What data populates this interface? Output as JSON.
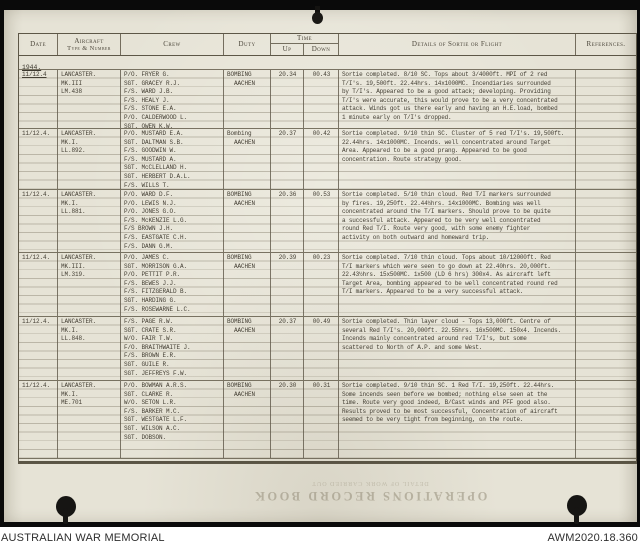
{
  "document": {
    "year_label": "1944.",
    "headers": {
      "date": "Date",
      "aircraft_line1": "Aircraft",
      "aircraft_line2": "Type & Number",
      "crew": "Crew",
      "duty": "Duty",
      "time": "Time",
      "up": "Up",
      "down": "Down",
      "details": "Details of Sortie or Flight",
      "references": "References."
    },
    "rows": [
      {
        "date": "11/12.4",
        "aircraft": [
          "LANCASTER.",
          "MK.III",
          "LM.438"
        ],
        "crew": [
          "P/O. FRYER G.",
          "SGT. GRACEY R.J.",
          "F/S. WARD J.B.",
          "F/S. HEALY J.",
          "F/S. STONE E.A.",
          "P/O. CALDERWOOD L.",
          "SGT. OWEN K.W."
        ],
        "duty": [
          "BOMBING",
          "AACHEN"
        ],
        "up": "20.34",
        "down": "00.43",
        "details": [
          "Sortie completed. 8/10 SC. Tops about 3/4000ft. MPI of 2 red",
          "T/I's. 19,500ft. 22.44hrs. 14x1000MC. Incendiaries surrounded",
          "by T/I's. Appeared to be a good attack; developing. Providing",
          "T/I's were accurate, this would prove to be a very concentrated",
          "attack. Winds got us there early and having an H.E.load, bombed",
          "1 minute early on T/I's dropped."
        ]
      },
      {
        "date": "11/12.4.",
        "aircraft": [
          "LANCASTER.",
          "MK.I.",
          "LL.892."
        ],
        "crew": [
          "P/O. MUSTARD E.A.",
          "SGT. DALTMAN S.B.",
          "F/S. GOODWIN W.",
          "F/S. MUSTARD A.",
          "SGT. McCLELLAND H.",
          "SGT. HERBERT D.A.L.",
          "F/S. WILLS T."
        ],
        "duty": [
          "Bombing",
          "AACHEN"
        ],
        "up": "20.37",
        "down": "00.42",
        "details": [
          "Sortie completed. 9/10 thin SC. Cluster of 5 red T/I's. 19,500ft.",
          "22.44hrs. 14x1000MC. Incends. well concentrated around Target",
          "Area. Appeared to be a good prang. Appeared to be good",
          "concentration. Route strategy good."
        ]
      },
      {
        "date": "11/12.4.",
        "aircraft": [
          "LANCASTER.",
          "MK.I.",
          "LL.881."
        ],
        "crew": [
          "P/O. WARD D.F.",
          "P/O. LEWIS N.J.",
          "P/O. JONES G.O.",
          "F/S. McKENZIE L.G.",
          "F/S BROWN J.H.",
          "F/S. EASTGATE C.H.",
          "F/S. DANN G.M."
        ],
        "duty": [
          "BOMBING",
          "AACHEN"
        ],
        "up": "20.36",
        "down": "00.53",
        "details": [
          "Sortie completed. 5/10 thin cloud. Red T/I markers surrounded",
          "by fires. 19,250ft. 22.44½hrs. 14x1000MC. Bombing was well",
          "concentrated around the T/I markers. Should prove to be quite",
          "a successful attack. Appeared to be very well concentrated",
          "round Red T/I. Route very good, with some enemy fighter",
          "activity on both outward and homeward trip."
        ]
      },
      {
        "date": "11/12.4.",
        "aircraft": [
          "LANCASTER.",
          "MK.III.",
          "LM.319."
        ],
        "crew": [
          "P/O. JAMES C.",
          "SGT. MORRISON G.A.",
          "P/O. PETTIT P.R.",
          "F/S. BEWES J.J.",
          "F/S. FITZGERALD B.",
          "SGT. HARDING G.",
          "F/S. ROSEWARNE L.C."
        ],
        "duty": [
          "BOMBING",
          "AACHEN"
        ],
        "up": "20.39",
        "down": "00.23",
        "details": [
          "Sortie completed. 7/10 thin cloud. Tops about 10/12000ft. Red",
          "T/I markers which were seen to go down at 22.40hrs. 20,000ft.",
          "22.43½hrs. 15x500MC. 1x500 (LD 6 hrs) 300x4. As aircraft left",
          "Target Area, bombing appeared to be well concentrated round red",
          "T/I markers. Appeared to be a very successful attack."
        ]
      },
      {
        "date": "11/12.4.",
        "aircraft": [
          "LANCASTER.",
          "MK.I.",
          "LL.848."
        ],
        "crew": [
          "F/S. PAGE R.W.",
          "SGT. CRATE S.R.",
          "W/O. FAIR T.W.",
          "F/O. BRAITHWAITE J.",
          "F/S. BROWN E.R.",
          "SGT. GUILE R.",
          "SGT. JEFFREYS F.W."
        ],
        "duty": [
          "BOMBING",
          "AACHEN"
        ],
        "up": "20.37",
        "down": "00.49",
        "details": [
          "Sortie completed. Thin layer cloud - Tops 13,000ft. Centre of",
          "several Red T/I's. 20,000ft. 22.55hrs. 16x500MC. 150x4. Incends.",
          "Incends mainly concentrated around red T/I's, but some",
          "scattered to North of A.P. and some West."
        ]
      },
      {
        "date": "11/12.4.",
        "aircraft": [
          "LANCASTER.",
          "MK.I.",
          "ME.701"
        ],
        "crew": [
          "P/O. BOWMAN A.R.S.",
          "SGT. CLARKE R.",
          "W/O. SETON L.R.",
          "F/S. BARKER M.C.",
          "SGT. WESTGATE L.F.",
          "SGT. WILSON A.C.",
          "SGT. DOBSON."
        ],
        "duty": [
          "BOMBING",
          "AACHEN"
        ],
        "up": "20.30",
        "down": "00.31",
        "details": [
          "Sortie completed. 9/10 thin SC. 1 Red T/I. 19,250ft. 22.44hrs.",
          "Some incends seen before we bombed; nothing else seen at the",
          "time. Route very good indeed, B/Cast winds and PFF good also.",
          "Results proved to be most successful, Concentration of aircraft",
          "seemed to be very tight from beginning, on the route."
        ]
      }
    ],
    "watermark_main": "OPERATIONS RECORD BOOK",
    "watermark_small": "DETAIL OF WORK CARRIED OUT"
  },
  "footer": {
    "source": "AUSTRALIAN WAR MEMORIAL",
    "id": "AWM2020.18.360"
  },
  "colors": {
    "paper": "#e6e3d6",
    "ink": "#433e33",
    "rule": "#746c5a",
    "frame": "#0a0a0a"
  }
}
